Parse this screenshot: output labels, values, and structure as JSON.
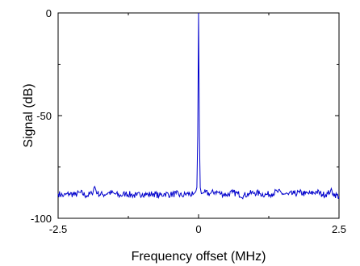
{
  "chart_data": {
    "type": "line",
    "title": "",
    "xlabel": "Frequency offset (MHz)",
    "ylabel": "Signal (dB)",
    "xlim": [
      -2.5,
      2.5
    ],
    "ylim": [
      -100,
      0
    ],
    "xticks": [
      -2.5,
      0,
      2.5
    ],
    "xtick_labels": [
      "-2.5",
      "0",
      "2.5"
    ],
    "yticks": [
      0,
      -50,
      -100
    ],
    "ytick_labels": [
      "0",
      "-50",
      "-100"
    ],
    "grid": false,
    "legend": "none",
    "series": [
      {
        "color": "#0000cc",
        "x": [
          -2.5,
          -2.4,
          -2.3,
          -2.2,
          -2.1,
          -2.0,
          -1.9,
          -1.85,
          -1.8,
          -1.7,
          -1.6,
          -1.5,
          -1.4,
          -1.3,
          -1.2,
          -1.1,
          -1.0,
          -0.9,
          -0.8,
          -0.7,
          -0.6,
          -0.5,
          -0.4,
          -0.3,
          -0.2,
          -0.1,
          -0.05,
          -0.03,
          -0.015,
          0,
          0.015,
          0.03,
          0.05,
          0.1,
          0.2,
          0.3,
          0.4,
          0.5,
          0.6,
          0.7,
          0.8,
          0.9,
          1.0,
          1.1,
          1.2,
          1.3,
          1.4,
          1.5,
          1.6,
          1.7,
          1.8,
          1.9,
          2.0,
          2.1,
          2.2,
          2.3,
          2.35,
          2.4,
          2.5
        ],
        "y": [
          -88,
          -89,
          -88,
          -88.5,
          -87.5,
          -89,
          -88,
          -84.5,
          -88,
          -88.5,
          -87.5,
          -88,
          -89,
          -88,
          -88.5,
          -89,
          -88,
          -88.5,
          -88,
          -89,
          -88,
          -88.5,
          -88,
          -89,
          -88,
          -88.5,
          -87,
          -85,
          -60,
          0,
          -60,
          -85,
          -88,
          -87.5,
          -88,
          -87,
          -88,
          -88.5,
          -87.5,
          -88,
          -89,
          -88,
          -87.5,
          -88,
          -88.5,
          -88,
          -87,
          -88,
          -88.5,
          -88,
          -87.5,
          -88,
          -88,
          -87,
          -88.5,
          -88,
          -86.5,
          -88,
          -89.5
        ]
      }
    ]
  }
}
